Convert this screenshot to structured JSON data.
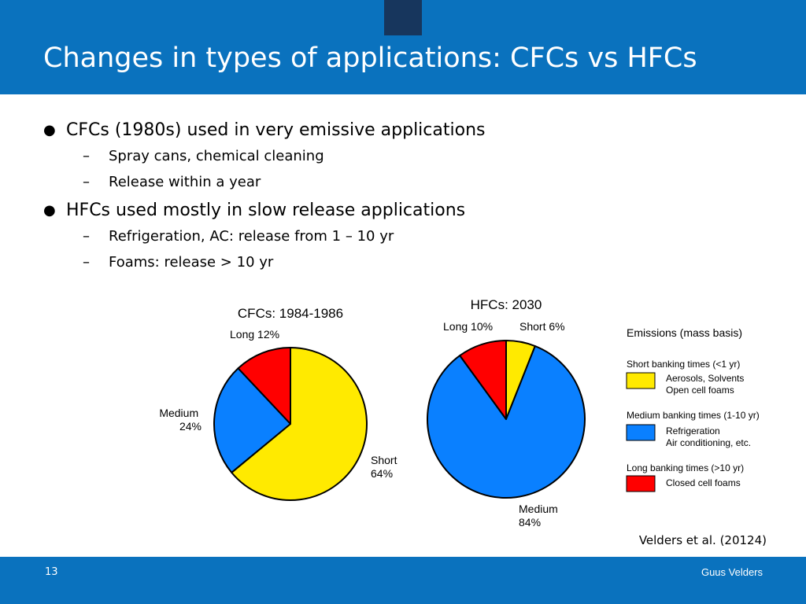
{
  "slide": {
    "title": "Changes in types of applications: CFCs vs HFCs",
    "bullets": [
      {
        "text": "CFCs (1980s) used in very emissive applications",
        "subs": [
          "Spray cans, chemical cleaning",
          "Release within a year"
        ]
      },
      {
        "text": "HFCs used mostly in slow release applications",
        "subs": [
          "Refrigeration, AC: release from 1 – 10 yr",
          "Foams: release > 10 yr"
        ]
      }
    ],
    "bullet_marker": "●",
    "sub_marker": "–",
    "citation": "Velders et al. (20124)",
    "page_number": "13",
    "author": "Guus Velders"
  },
  "colors": {
    "header": "#0a72be",
    "short": "#ffea00",
    "medium": "#0a80ff",
    "long": "#ff0000"
  },
  "chart_data": [
    {
      "type": "pie",
      "title": "CFCs: 1984-1986",
      "slices": [
        {
          "key": "short",
          "label": "Short",
          "pct_label": "64%",
          "value": 64
        },
        {
          "key": "medium",
          "label": "Medium",
          "pct_label": "24%",
          "value": 24
        },
        {
          "key": "long",
          "label": "Long",
          "pct_label": "12%",
          "value": 12
        }
      ]
    },
    {
      "type": "pie",
      "title": "HFCs: 2030",
      "slices": [
        {
          "key": "short",
          "label": "Short",
          "pct_label": "6%",
          "value": 6
        },
        {
          "key": "medium",
          "label": "Medium",
          "pct_label": "84%",
          "value": 84
        },
        {
          "key": "long",
          "label": "Long",
          "pct_label": "10%",
          "value": 10
        }
      ]
    }
  ],
  "legend": {
    "title": "Emissions (mass basis)",
    "groups": [
      {
        "key": "short",
        "heading": "Short banking times (<1 yr)",
        "lines": [
          "Aerosols, Solvents",
          "Open cell foams"
        ]
      },
      {
        "key": "medium",
        "heading": "Medium banking times (1-10 yr)",
        "lines": [
          "Refrigeration",
          "Air conditioning, etc."
        ]
      },
      {
        "key": "long",
        "heading": "Long banking times (>10 yr)",
        "lines": [
          "Closed cell foams"
        ]
      }
    ]
  }
}
